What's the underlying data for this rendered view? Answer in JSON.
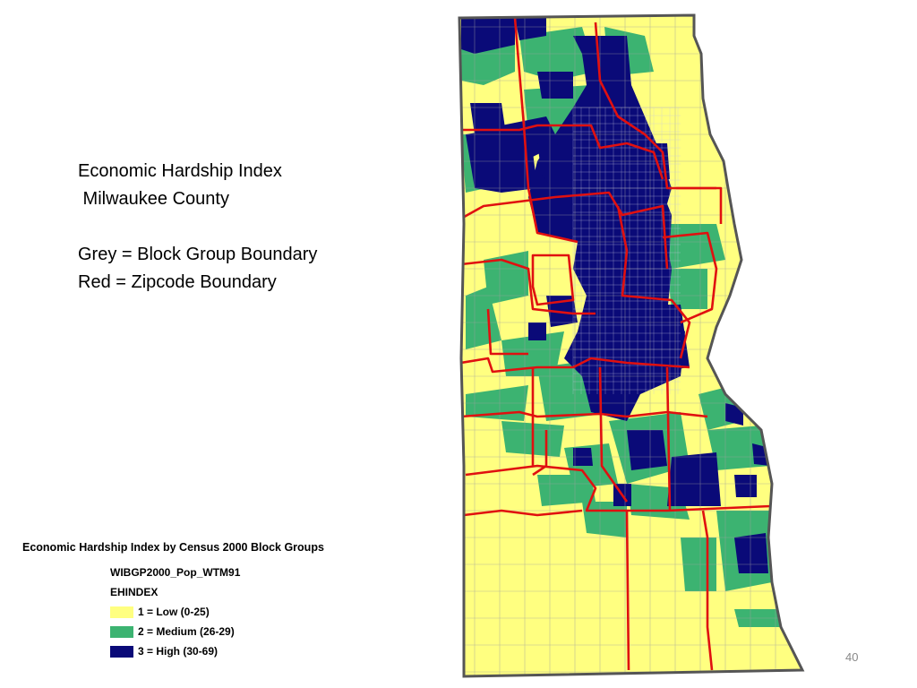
{
  "slide": {
    "title_line1": "Economic Hardship Index",
    "title_line2": " Milwaukee County",
    "note_grey": "Grey = Block Group Boundary",
    "note_red": "Red = Zipcode Boundary",
    "page_number": "40"
  },
  "legend": {
    "heading": "Economic Hardship Index by Census 2000 Block Groups",
    "layer_name": "WIBGP2000_Pop_WTM91",
    "field_name": "EHINDEX",
    "items": [
      {
        "label": " 1 = Low (0-25)",
        "color": "#ffff80"
      },
      {
        "label": "2 = Medium (26-29)",
        "color": "#3cb371"
      },
      {
        "label": "3 = High (30-69)",
        "color": "#0a0a78"
      }
    ]
  },
  "map": {
    "colors": {
      "low": "#ffff80",
      "medium": "#3cb371",
      "high": "#0a0a78",
      "block_group_boundary": "#a0a0a0",
      "zipcode_boundary": "#e01010",
      "county_outline": "#555555"
    }
  }
}
